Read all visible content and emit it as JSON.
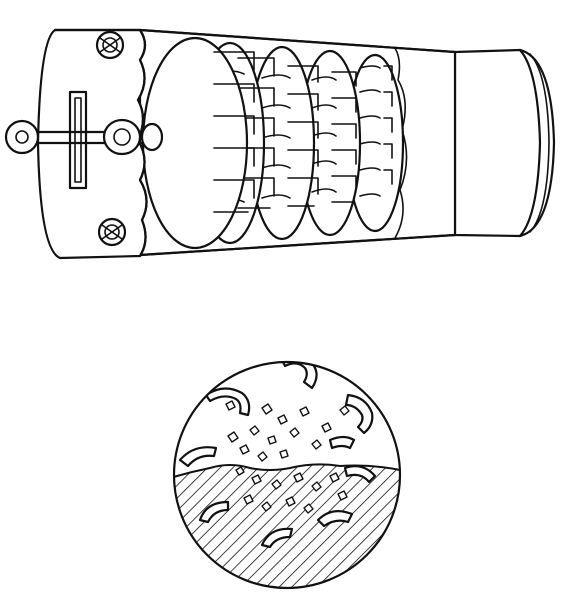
{
  "figure": {
    "main_view": "rotating-tube-cutter",
    "detail_view": "magnified-cutting-action",
    "colors": {
      "ink": "#111111",
      "background": "#ffffff"
    }
  }
}
